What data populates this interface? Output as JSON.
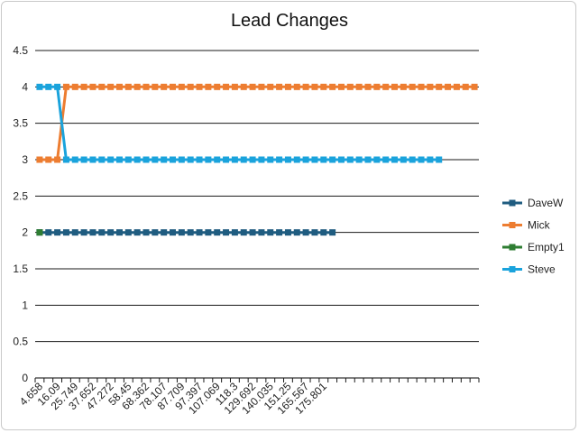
{
  "chart_data": {
    "type": "line",
    "title": "Lead Changes",
    "xlabel": "",
    "ylabel": "",
    "ylim": [
      0,
      4.5
    ],
    "yticks": [
      "0",
      "0.5",
      "1",
      "1.5",
      "2",
      "2.5",
      "3",
      "3.5",
      "4",
      "4.5"
    ],
    "grid": "horizontal",
    "legend_position": "right",
    "x_tick_labels": [
      "4.658",
      "16.09",
      "25.749",
      "37.652",
      "47.272",
      "58.45",
      "68.362",
      "78.107",
      "87.709",
      "97.397",
      "107.069",
      "118.3",
      "129.692",
      "140.035",
      "151.25",
      "165.567",
      "175.801"
    ],
    "x_points": 50,
    "series": [
      {
        "name": "DaveW",
        "color": "#1f5c80",
        "values": [
          2,
          2,
          2,
          2,
          2,
          2,
          2,
          2,
          2,
          2,
          2,
          2,
          2,
          2,
          2,
          2,
          2,
          2,
          2,
          2,
          2,
          2,
          2,
          2,
          2,
          2,
          2,
          2,
          2,
          2,
          2,
          2,
          2,
          2
        ]
      },
      {
        "name": "Mick",
        "color": "#ed7d31",
        "values": [
          3,
          3,
          3,
          4,
          4,
          4,
          4,
          4,
          4,
          4,
          4,
          4,
          4,
          4,
          4,
          4,
          4,
          4,
          4,
          4,
          4,
          4,
          4,
          4,
          4,
          4,
          4,
          4,
          4,
          4,
          4,
          4,
          4,
          4,
          4,
          4,
          4,
          4,
          4,
          4,
          4,
          4,
          4,
          4,
          4,
          4,
          4,
          4,
          4,
          4
        ]
      },
      {
        "name": "Empty1",
        "color": "#2e7d32",
        "values": [
          2
        ]
      },
      {
        "name": "Steve",
        "color": "#1aa3dc",
        "values": [
          4,
          4,
          4,
          3,
          3,
          3,
          3,
          3,
          3,
          3,
          3,
          3,
          3,
          3,
          3,
          3,
          3,
          3,
          3,
          3,
          3,
          3,
          3,
          3,
          3,
          3,
          3,
          3,
          3,
          3,
          3,
          3,
          3,
          3,
          3,
          3,
          3,
          3,
          3,
          3,
          3,
          3,
          3,
          3,
          3,
          3
        ]
      }
    ]
  }
}
